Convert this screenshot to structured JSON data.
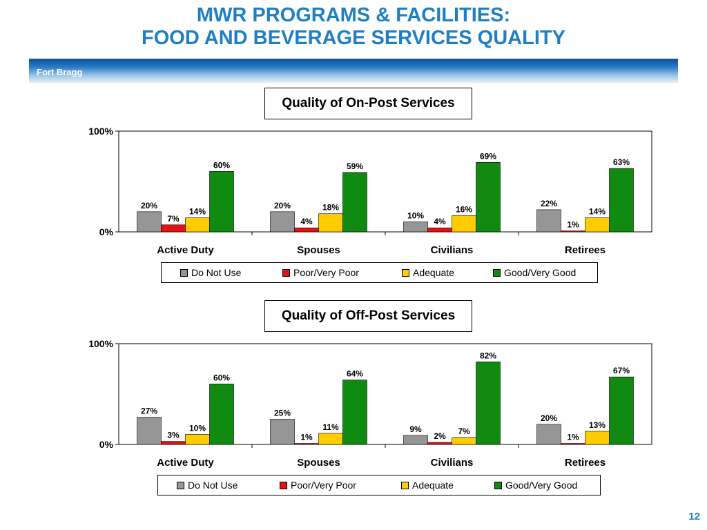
{
  "header": {
    "title_line1": "MWR PROGRAMS & FACILITIES:",
    "title_line2": "FOOD AND BEVERAGE SERVICES QUALITY",
    "location": "Fort Bragg"
  },
  "page_number": "12",
  "colors": {
    "do_not_use": "#969696",
    "poor": "#e81010",
    "adequate": "#ffcc00",
    "good": "#108a10",
    "title_blue": "#1f7fc3"
  },
  "chart_data": [
    {
      "type": "bar",
      "title": "Quality of On-Post Services",
      "categories": [
        "Active Duty",
        "Spouses",
        "Civilians",
        "Retirees"
      ],
      "series": [
        {
          "name": "Do Not Use",
          "values": [
            20,
            20,
            10,
            22
          ]
        },
        {
          "name": "Poor/Very Poor",
          "values": [
            7,
            4,
            4,
            1
          ]
        },
        {
          "name": "Adequate",
          "values": [
            14,
            18,
            16,
            14
          ]
        },
        {
          "name": "Good/Very Good",
          "values": [
            60,
            59,
            69,
            63
          ]
        }
      ],
      "yticks": [
        "0%",
        "100%"
      ],
      "ylim": [
        0,
        100
      ],
      "legend": "bottom",
      "grid": false
    },
    {
      "type": "bar",
      "title": "Quality of Off-Post Services",
      "categories": [
        "Active Duty",
        "Spouses",
        "Civilians",
        "Retirees"
      ],
      "series": [
        {
          "name": "Do Not Use",
          "values": [
            27,
            25,
            9,
            20
          ]
        },
        {
          "name": "Poor/Very Poor",
          "values": [
            3,
            1,
            2,
            1
          ]
        },
        {
          "name": "Adequate",
          "values": [
            10,
            11,
            7,
            13
          ]
        },
        {
          "name": "Good/Very Good",
          "values": [
            60,
            64,
            82,
            67
          ]
        }
      ],
      "yticks": [
        "0%",
        "100%"
      ],
      "ylim": [
        0,
        100
      ],
      "legend": "bottom",
      "grid": false
    }
  ]
}
